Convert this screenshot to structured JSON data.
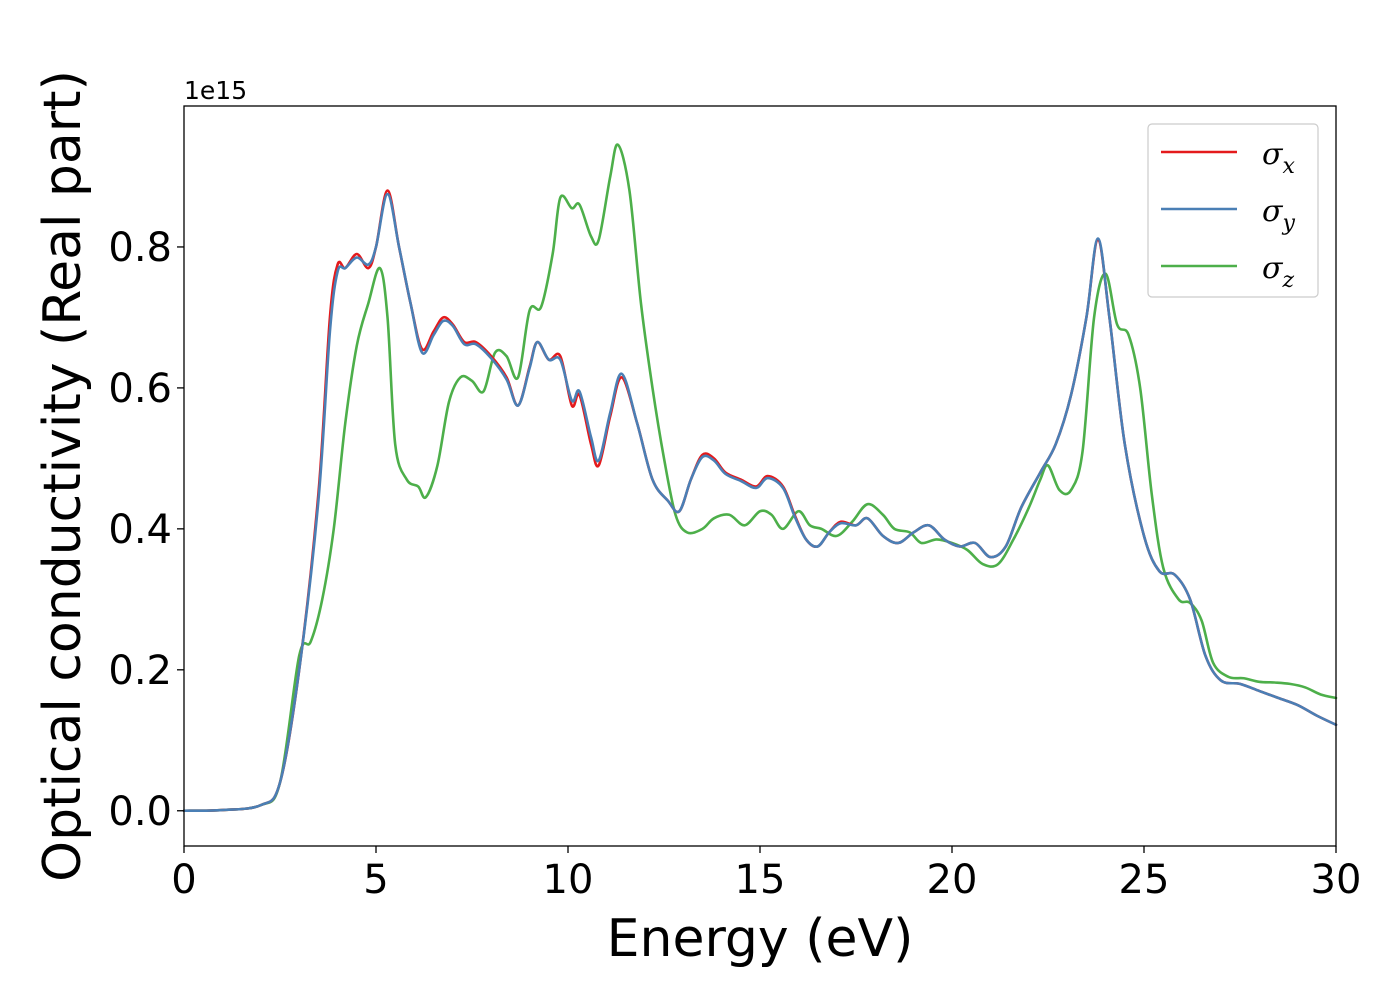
{
  "chart_data": {
    "type": "line",
    "xlabel": "Energy (eV)",
    "ylabel": "Optical conductivity (Real part)",
    "y_offset_label": "1e15",
    "xlim": [
      0,
      30
    ],
    "ylim": [
      -0.05,
      1.0
    ],
    "x_ticks": [
      0,
      5,
      10,
      15,
      20,
      25,
      30
    ],
    "x_tick_labels": [
      "0",
      "5",
      "10",
      "15",
      "20",
      "25",
      "30"
    ],
    "y_ticks": [
      0.0,
      0.2,
      0.4,
      0.6,
      0.8
    ],
    "y_tick_labels": [
      "0.0",
      "0.2",
      "0.4",
      "0.6",
      "0.8"
    ],
    "grid": false,
    "legend_position": "top-right",
    "series": [
      {
        "name": "σx",
        "symbol": "σ",
        "subscript": "x",
        "color": "#e41a1c",
        "points": [
          [
            0,
            0
          ],
          [
            1,
            0.001
          ],
          [
            2,
            0.008
          ],
          [
            2.5,
            0.04
          ],
          [
            3,
            0.2
          ],
          [
            3.5,
            0.45
          ],
          [
            3.8,
            0.7
          ],
          [
            4,
            0.775
          ],
          [
            4.2,
            0.77
          ],
          [
            4.5,
            0.79
          ],
          [
            4.8,
            0.77
          ],
          [
            5,
            0.8
          ],
          [
            5.3,
            0.88
          ],
          [
            5.6,
            0.8
          ],
          [
            5.9,
            0.72
          ],
          [
            6.2,
            0.655
          ],
          [
            6.5,
            0.68
          ],
          [
            6.75,
            0.7
          ],
          [
            7,
            0.69
          ],
          [
            7.3,
            0.665
          ],
          [
            7.6,
            0.665
          ],
          [
            8,
            0.645
          ],
          [
            8.4,
            0.615
          ],
          [
            8.7,
            0.575
          ],
          [
            9,
            0.63
          ],
          [
            9.2,
            0.665
          ],
          [
            9.5,
            0.64
          ],
          [
            9.8,
            0.645
          ],
          [
            10.1,
            0.575
          ],
          [
            10.3,
            0.59
          ],
          [
            10.6,
            0.52
          ],
          [
            10.8,
            0.49
          ],
          [
            11.1,
            0.56
          ],
          [
            11.4,
            0.615
          ],
          [
            11.8,
            0.55
          ],
          [
            12.2,
            0.47
          ],
          [
            12.6,
            0.44
          ],
          [
            12.9,
            0.425
          ],
          [
            13.2,
            0.47
          ],
          [
            13.5,
            0.505
          ],
          [
            13.8,
            0.5
          ],
          [
            14.1,
            0.48
          ],
          [
            14.5,
            0.47
          ],
          [
            14.9,
            0.46
          ],
          [
            15.2,
            0.475
          ],
          [
            15.6,
            0.46
          ],
          [
            15.9,
            0.42
          ],
          [
            16.2,
            0.385
          ],
          [
            16.5,
            0.375
          ],
          [
            16.8,
            0.395
          ],
          [
            17.1,
            0.41
          ],
          [
            17.5,
            0.405
          ],
          [
            17.8,
            0.415
          ],
          [
            18.2,
            0.39
          ],
          [
            18.6,
            0.38
          ],
          [
            19,
            0.395
          ],
          [
            19.4,
            0.405
          ],
          [
            19.8,
            0.385
          ],
          [
            20.2,
            0.375
          ],
          [
            20.6,
            0.38
          ],
          [
            21,
            0.36
          ],
          [
            21.4,
            0.375
          ],
          [
            21.8,
            0.43
          ],
          [
            22.3,
            0.48
          ],
          [
            22.7,
            0.52
          ],
          [
            23.1,
            0.59
          ],
          [
            23.5,
            0.7
          ],
          [
            23.8,
            0.81
          ],
          [
            24.1,
            0.7
          ],
          [
            24.5,
            0.52
          ],
          [
            25,
            0.39
          ],
          [
            25.4,
            0.34
          ],
          [
            25.8,
            0.335
          ],
          [
            26.2,
            0.3
          ],
          [
            26.6,
            0.22
          ],
          [
            27,
            0.185
          ],
          [
            27.5,
            0.18
          ],
          [
            28,
            0.17
          ],
          [
            28.5,
            0.16
          ],
          [
            29,
            0.15
          ],
          [
            29.5,
            0.135
          ],
          [
            30,
            0.122
          ]
        ]
      },
      {
        "name": "σy",
        "symbol": "σ",
        "subscript": "y",
        "color": "#4a7fb5",
        "points": [
          [
            0,
            0
          ],
          [
            1,
            0.001
          ],
          [
            2,
            0.008
          ],
          [
            2.5,
            0.04
          ],
          [
            3,
            0.2
          ],
          [
            3.5,
            0.44
          ],
          [
            3.8,
            0.68
          ],
          [
            4,
            0.765
          ],
          [
            4.2,
            0.77
          ],
          [
            4.5,
            0.785
          ],
          [
            4.8,
            0.775
          ],
          [
            5,
            0.8
          ],
          [
            5.3,
            0.875
          ],
          [
            5.6,
            0.8
          ],
          [
            5.9,
            0.72
          ],
          [
            6.2,
            0.65
          ],
          [
            6.5,
            0.675
          ],
          [
            6.75,
            0.695
          ],
          [
            7,
            0.688
          ],
          [
            7.3,
            0.662
          ],
          [
            7.6,
            0.662
          ],
          [
            8,
            0.642
          ],
          [
            8.4,
            0.612
          ],
          [
            8.7,
            0.575
          ],
          [
            9,
            0.628
          ],
          [
            9.2,
            0.665
          ],
          [
            9.5,
            0.64
          ],
          [
            9.8,
            0.64
          ],
          [
            10.1,
            0.582
          ],
          [
            10.3,
            0.595
          ],
          [
            10.6,
            0.53
          ],
          [
            10.8,
            0.497
          ],
          [
            11.1,
            0.565
          ],
          [
            11.4,
            0.62
          ],
          [
            11.8,
            0.55
          ],
          [
            12.2,
            0.47
          ],
          [
            12.6,
            0.44
          ],
          [
            12.9,
            0.425
          ],
          [
            13.2,
            0.47
          ],
          [
            13.5,
            0.502
          ],
          [
            13.8,
            0.497
          ],
          [
            14.1,
            0.478
          ],
          [
            14.5,
            0.468
          ],
          [
            14.9,
            0.458
          ],
          [
            15.2,
            0.472
          ],
          [
            15.6,
            0.458
          ],
          [
            15.9,
            0.418
          ],
          [
            16.2,
            0.385
          ],
          [
            16.5,
            0.375
          ],
          [
            16.8,
            0.395
          ],
          [
            17.1,
            0.408
          ],
          [
            17.5,
            0.405
          ],
          [
            17.8,
            0.415
          ],
          [
            18.2,
            0.39
          ],
          [
            18.6,
            0.38
          ],
          [
            19,
            0.395
          ],
          [
            19.4,
            0.405
          ],
          [
            19.8,
            0.385
          ],
          [
            20.2,
            0.375
          ],
          [
            20.6,
            0.38
          ],
          [
            21,
            0.36
          ],
          [
            21.4,
            0.375
          ],
          [
            21.8,
            0.43
          ],
          [
            22.3,
            0.48
          ],
          [
            22.7,
            0.52
          ],
          [
            23.1,
            0.59
          ],
          [
            23.5,
            0.7
          ],
          [
            23.8,
            0.812
          ],
          [
            24.1,
            0.7
          ],
          [
            24.5,
            0.52
          ],
          [
            25,
            0.39
          ],
          [
            25.4,
            0.34
          ],
          [
            25.8,
            0.335
          ],
          [
            26.2,
            0.3
          ],
          [
            26.6,
            0.22
          ],
          [
            27,
            0.185
          ],
          [
            27.5,
            0.18
          ],
          [
            28,
            0.17
          ],
          [
            28.5,
            0.16
          ],
          [
            29,
            0.15
          ],
          [
            29.5,
            0.135
          ],
          [
            30,
            0.122
          ]
        ]
      },
      {
        "name": "σz",
        "symbol": "σ",
        "subscript": "z",
        "color": "#4daf4a",
        "points": [
          [
            0,
            0
          ],
          [
            1,
            0.001
          ],
          [
            2,
            0.008
          ],
          [
            2.5,
            0.04
          ],
          [
            3,
            0.22
          ],
          [
            3.3,
            0.24
          ],
          [
            3.6,
            0.3
          ],
          [
            3.9,
            0.4
          ],
          [
            4.2,
            0.55
          ],
          [
            4.5,
            0.66
          ],
          [
            4.8,
            0.72
          ],
          [
            5.1,
            0.77
          ],
          [
            5.3,
            0.7
          ],
          [
            5.5,
            0.52
          ],
          [
            5.8,
            0.47
          ],
          [
            6.1,
            0.46
          ],
          [
            6.3,
            0.445
          ],
          [
            6.6,
            0.49
          ],
          [
            6.9,
            0.58
          ],
          [
            7.2,
            0.615
          ],
          [
            7.5,
            0.61
          ],
          [
            7.8,
            0.595
          ],
          [
            8.1,
            0.65
          ],
          [
            8.4,
            0.645
          ],
          [
            8.7,
            0.615
          ],
          [
            9,
            0.71
          ],
          [
            9.3,
            0.715
          ],
          [
            9.6,
            0.79
          ],
          [
            9.8,
            0.87
          ],
          [
            10.1,
            0.855
          ],
          [
            10.3,
            0.86
          ],
          [
            10.6,
            0.815
          ],
          [
            10.8,
            0.81
          ],
          [
            11.1,
            0.9
          ],
          [
            11.3,
            0.945
          ],
          [
            11.6,
            0.88
          ],
          [
            11.9,
            0.72
          ],
          [
            12.2,
            0.6
          ],
          [
            12.5,
            0.5
          ],
          [
            12.8,
            0.42
          ],
          [
            13.1,
            0.395
          ],
          [
            13.5,
            0.4
          ],
          [
            13.8,
            0.415
          ],
          [
            14.2,
            0.42
          ],
          [
            14.6,
            0.405
          ],
          [
            15,
            0.425
          ],
          [
            15.3,
            0.42
          ],
          [
            15.6,
            0.4
          ],
          [
            16,
            0.425
          ],
          [
            16.3,
            0.405
          ],
          [
            16.6,
            0.4
          ],
          [
            17,
            0.39
          ],
          [
            17.4,
            0.41
          ],
          [
            17.8,
            0.435
          ],
          [
            18.2,
            0.42
          ],
          [
            18.5,
            0.4
          ],
          [
            18.9,
            0.395
          ],
          [
            19.2,
            0.38
          ],
          [
            19.6,
            0.385
          ],
          [
            20,
            0.38
          ],
          [
            20.4,
            0.37
          ],
          [
            20.8,
            0.35
          ],
          [
            21.2,
            0.35
          ],
          [
            21.6,
            0.385
          ],
          [
            22,
            0.43
          ],
          [
            22.3,
            0.47
          ],
          [
            22.5,
            0.49
          ],
          [
            22.8,
            0.455
          ],
          [
            23.1,
            0.455
          ],
          [
            23.4,
            0.51
          ],
          [
            23.7,
            0.7
          ],
          [
            24,
            0.762
          ],
          [
            24.3,
            0.69
          ],
          [
            24.6,
            0.675
          ],
          [
            24.9,
            0.6
          ],
          [
            25.2,
            0.45
          ],
          [
            25.5,
            0.345
          ],
          [
            25.9,
            0.3
          ],
          [
            26.2,
            0.295
          ],
          [
            26.5,
            0.27
          ],
          [
            26.8,
            0.21
          ],
          [
            27.2,
            0.19
          ],
          [
            27.6,
            0.188
          ],
          [
            28,
            0.183
          ],
          [
            28.4,
            0.182
          ],
          [
            28.8,
            0.18
          ],
          [
            29.2,
            0.175
          ],
          [
            29.6,
            0.165
          ],
          [
            30,
            0.16
          ]
        ]
      }
    ]
  }
}
